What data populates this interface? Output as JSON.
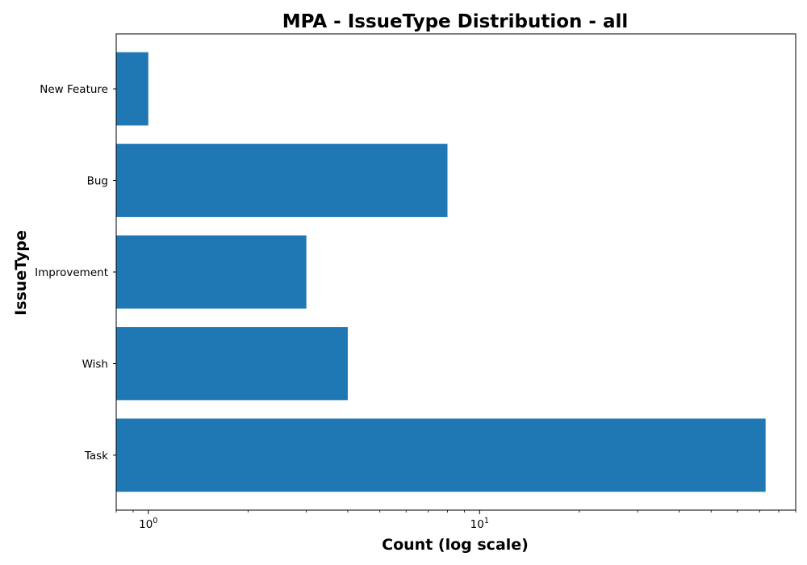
{
  "chart_data": {
    "type": "bar",
    "orientation": "horizontal",
    "title": "MPA - IssueType Distribution - all",
    "xlabel": "Count (log scale)",
    "ylabel": "IssueType",
    "x_scale": "log",
    "xlim": [
      0.8,
      90
    ],
    "categories": [
      "Task",
      "Wish",
      "Improvement",
      "Bug",
      "New Feature"
    ],
    "values": [
      73,
      4,
      3,
      8,
      1
    ],
    "x_major_ticks": [
      {
        "value": 1,
        "base": "10",
        "exponent": "0"
      },
      {
        "value": 10,
        "base": "10",
        "exponent": "1"
      }
    ],
    "bar_color": "#1f77b4",
    "grid": false,
    "legend": false
  }
}
